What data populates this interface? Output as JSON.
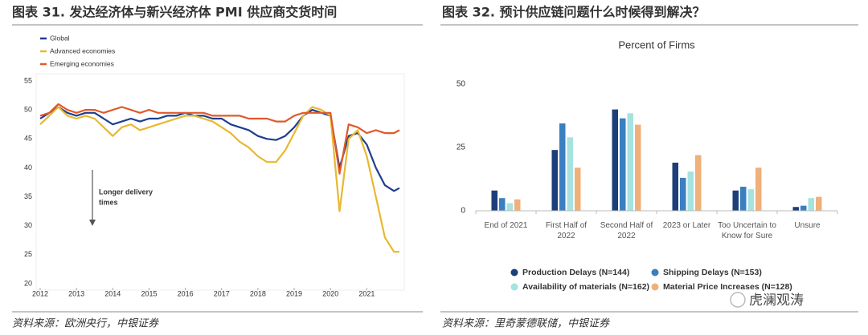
{
  "chart_data": [
    {
      "type": "line",
      "title": "图表 31. 发达经济体与新兴经济体 PMI 供应商交货时间",
      "source": "资料来源：欧洲央行，中银证券",
      "x": [
        2012.0,
        2012.25,
        2012.5,
        2012.75,
        2013.0,
        2013.25,
        2013.5,
        2013.75,
        2014.0,
        2014.25,
        2014.5,
        2014.75,
        2015.0,
        2015.25,
        2015.5,
        2015.75,
        2016.0,
        2016.25,
        2016.5,
        2016.75,
        2017.0,
        2017.25,
        2017.5,
        2017.75,
        2018.0,
        2018.25,
        2018.5,
        2018.75,
        2019.0,
        2019.25,
        2019.5,
        2019.75,
        2020.0,
        2020.25,
        2020.5,
        2020.75,
        2021.0,
        2021.25,
        2021.5,
        2021.75,
        2021.9
      ],
      "series": [
        {
          "name": "Global",
          "color": "#1f3d8f",
          "values": [
            48.5,
            49.5,
            50.5,
            49.5,
            49,
            49.5,
            49.5,
            48.5,
            47.5,
            48,
            48.5,
            48,
            48.5,
            48.5,
            49,
            49,
            49.5,
            49,
            49,
            48.5,
            48.5,
            47.5,
            47,
            46.5,
            45.5,
            45,
            44.8,
            45.5,
            47,
            49,
            50,
            49.5,
            49,
            40,
            45.5,
            46,
            44,
            40,
            37,
            36,
            36.5
          ]
        },
        {
          "name": "Advanced economies",
          "color": "#e8b830",
          "values": [
            47.5,
            49,
            50.5,
            49,
            48.5,
            49,
            48.5,
            47,
            45.5,
            47,
            47.5,
            46.5,
            47,
            47.5,
            48,
            48.5,
            49,
            49,
            48.5,
            48,
            47,
            46,
            44.5,
            43.5,
            42,
            41,
            41,
            43,
            46,
            49,
            50.5,
            50,
            49,
            32.5,
            45,
            46.5,
            42,
            35,
            28,
            25.5,
            25.5
          ]
        },
        {
          "name": "Emerging economies",
          "color": "#e05a2a",
          "values": [
            49,
            49.5,
            51,
            50,
            49.5,
            50,
            50,
            49.5,
            50,
            50.5,
            50,
            49.5,
            50,
            49.5,
            49.5,
            49.5,
            49.5,
            49.5,
            49.5,
            49,
            49,
            49,
            49,
            48.5,
            48.5,
            48.5,
            48,
            48,
            49,
            49.5,
            49.5,
            49.5,
            49.5,
            39,
            47.5,
            47,
            46,
            46.5,
            46,
            46,
            46.5
          ]
        }
      ],
      "xlim": [
        2012,
        2021.9
      ],
      "xticks": [
        2012,
        2013,
        2014,
        2015,
        2016,
        2017,
        2018,
        2019,
        2020,
        2021
      ],
      "ylim": [
        20,
        55
      ],
      "yticks": [
        20,
        25,
        30,
        35,
        40,
        45,
        50,
        55
      ],
      "annotation": [
        "Longer delivery",
        "times"
      ],
      "grid": false
    },
    {
      "type": "bar",
      "title": "图表 32. 预计供应链问题什么时候得到解决？",
      "subtitle": "Percent of Firms",
      "source": "资料来源：里奇蒙德联储，中银证券",
      "categories": [
        "End of 2021",
        "First Half of 2022",
        "Second Half of 2022",
        "2023 or Later",
        "Too Uncertain to Know for Sure",
        "Unsure"
      ],
      "series": [
        {
          "name": "Production Delays (N=144)",
          "color": "#1c3f7a",
          "values": [
            8,
            24,
            40,
            19,
            8,
            1.5
          ]
        },
        {
          "name": "Shipping Delays (N=153)",
          "color": "#3a7fc1",
          "values": [
            5,
            34.5,
            36.5,
            13,
            9.5,
            2
          ]
        },
        {
          "name": "Availability of materials (N=162)",
          "color": "#a5e2e0",
          "values": [
            3,
            29,
            38.5,
            15.5,
            8.5,
            5
          ]
        },
        {
          "name": "Material Price Increases (N=128)",
          "color": "#f0b07a",
          "values": [
            4.5,
            17,
            34,
            22,
            17,
            5.5
          ]
        }
      ],
      "ylim": [
        0,
        50
      ],
      "yticks": [
        0,
        25,
        50
      ],
      "grid": false
    }
  ],
  "watermark": "虎澜观涛"
}
